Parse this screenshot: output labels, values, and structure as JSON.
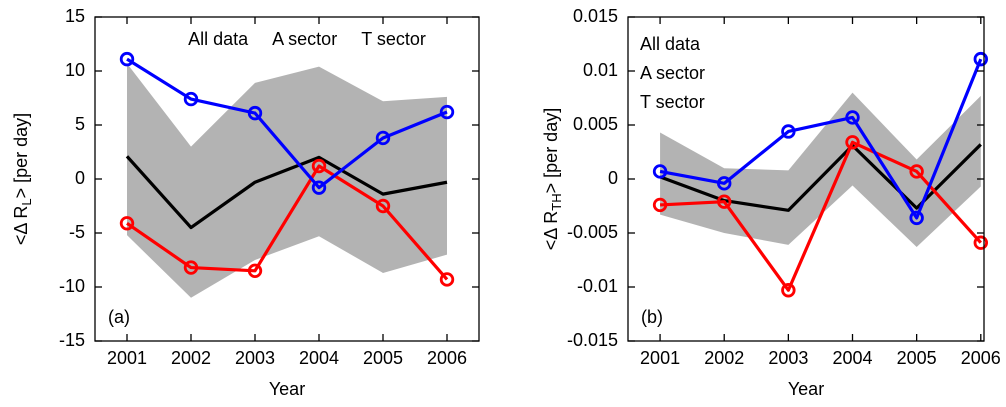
{
  "chart_data": [
    {
      "type": "line",
      "annotation": "(a)",
      "xlabel": "Year",
      "ylabel": [
        "<Δ R",
        "L",
        "> [per day]"
      ],
      "x": [
        2001,
        2002,
        2003,
        2004,
        2005,
        2006
      ],
      "xlim": [
        2000.5,
        2006.5
      ],
      "xticks": [
        2001,
        2002,
        2003,
        2004,
        2005,
        2006
      ],
      "ylim": [
        -15,
        15
      ],
      "yticks": [
        -15,
        -10,
        -5,
        0,
        5,
        10,
        15
      ],
      "legend": "upper center",
      "band": {
        "color": "#b3b3b3",
        "upper": [
          10.7,
          3.0,
          8.9,
          10.4,
          7.2,
          7.6
        ],
        "lower": [
          -5.2,
          -11.0,
          -7.5,
          -5.3,
          -8.7,
          -7.0
        ]
      },
      "series": [
        {
          "name": "All data",
          "color": "#000000",
          "markers": false,
          "values": [
            2.1,
            -4.5,
            -0.3,
            2.0,
            -1.4,
            -0.3
          ]
        },
        {
          "name": "A sector",
          "color": "#ff0000",
          "markers": true,
          "values": [
            -4.1,
            -8.2,
            -8.5,
            1.2,
            -2.5,
            -9.3
          ]
        },
        {
          "name": "T sector",
          "color": "#0000ff",
          "markers": true,
          "values": [
            11.1,
            7.4,
            6.1,
            -0.8,
            3.8,
            6.2
          ]
        }
      ]
    },
    {
      "type": "line",
      "annotation": "(b)",
      "xlabel": "Year",
      "ylabel": [
        "<Δ R",
        "TH",
        "> [per day]"
      ],
      "x": [
        2001,
        2002,
        2003,
        2004,
        2005,
        2006
      ],
      "xlim": [
        2000.5,
        2006.05
      ],
      "xticks": [
        2001,
        2002,
        2003,
        2004,
        2005,
        2006
      ],
      "ylim": [
        -0.015,
        0.015
      ],
      "yticks": [
        -0.015,
        -0.01,
        -0.005,
        0,
        0.005,
        0.01,
        0.015
      ],
      "legend": "upper left",
      "band": {
        "color": "#b3b3b3",
        "upper": [
          0.0043,
          0.001,
          0.0008,
          0.008,
          0.0018,
          0.0077
        ],
        "lower": [
          -0.0033,
          -0.005,
          -0.0061,
          -0.0006,
          -0.0063,
          -0.0007
        ]
      },
      "series": [
        {
          "name": "All data",
          "color": "#000000",
          "markers": false,
          "values": [
            0.0002,
            -0.002,
            -0.0029,
            0.0031,
            -0.0027,
            0.0032
          ]
        },
        {
          "name": "A sector",
          "color": "#ff0000",
          "markers": true,
          "values": [
            -0.0024,
            -0.0021,
            -0.0103,
            0.0034,
            0.0007,
            -0.0059
          ]
        },
        {
          "name": "T sector",
          "color": "#0000ff",
          "markers": true,
          "values": [
            0.0007,
            -0.0004,
            0.0044,
            0.0057,
            -0.0036,
            0.0111
          ]
        }
      ]
    }
  ]
}
